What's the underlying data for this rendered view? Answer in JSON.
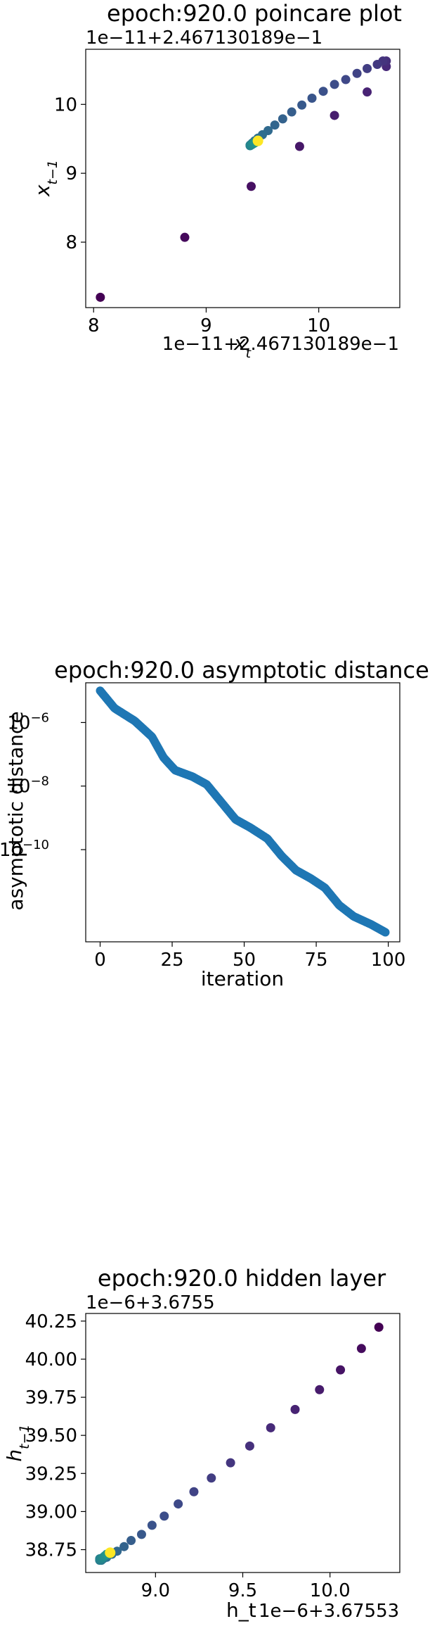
{
  "chart_data": [
    {
      "type": "scatter",
      "title": "epoch:920.0 poincare plot",
      "xlabel": "x_t",
      "ylabel": "x_{t-1}",
      "x_offset_text": "1e−11+2.467130189e−1",
      "y_offset_text": "1e−11+2.467130189e−1",
      "xlim": [
        7.93,
        10.72
      ],
      "ylim": [
        7.05,
        10.8
      ],
      "xticks": [
        8,
        9,
        10
      ],
      "xtick_labels": [
        "8",
        "9",
        "10"
      ],
      "yticks": [
        8,
        9,
        10
      ],
      "ytick_labels": [
        "8",
        "9",
        "10"
      ],
      "colormap": "viridis",
      "points": [
        {
          "x": 8.06,
          "y": 7.2
        },
        {
          "x": 8.81,
          "y": 8.07
        },
        {
          "x": 9.4,
          "y": 8.81
        },
        {
          "x": 9.83,
          "y": 9.39
        },
        {
          "x": 10.14,
          "y": 9.84
        },
        {
          "x": 10.43,
          "y": 10.18
        },
        {
          "x": 10.6,
          "y": 10.55
        },
        {
          "x": 10.6,
          "y": 10.63
        },
        {
          "x": 10.57,
          "y": 10.63
        },
        {
          "x": 10.52,
          "y": 10.58
        },
        {
          "x": 10.43,
          "y": 10.52
        },
        {
          "x": 10.34,
          "y": 10.45
        },
        {
          "x": 10.24,
          "y": 10.36
        },
        {
          "x": 10.14,
          "y": 10.29
        },
        {
          "x": 10.04,
          "y": 10.19
        },
        {
          "x": 9.94,
          "y": 10.09
        },
        {
          "x": 9.85,
          "y": 9.99
        },
        {
          "x": 9.76,
          "y": 9.89
        },
        {
          "x": 9.68,
          "y": 9.79
        },
        {
          "x": 9.61,
          "y": 9.7
        },
        {
          "x": 9.55,
          "y": 9.62
        },
        {
          "x": 9.5,
          "y": 9.56
        },
        {
          "x": 9.46,
          "y": 9.51
        },
        {
          "x": 9.43,
          "y": 9.47
        },
        {
          "x": 9.41,
          "y": 9.44
        },
        {
          "x": 9.4,
          "y": 9.42
        },
        {
          "x": 9.39,
          "y": 9.41
        },
        {
          "x": 9.39,
          "y": 9.4
        },
        {
          "x": 9.4,
          "y": 9.41
        },
        {
          "x": 9.41,
          "y": 9.42
        },
        {
          "x": 9.42,
          "y": 9.43
        },
        {
          "x": 9.43,
          "y": 9.44
        },
        {
          "x": 9.44,
          "y": 9.45
        },
        {
          "x": 9.45,
          "y": 9.46
        },
        {
          "x": 9.46,
          "y": 9.47
        }
      ]
    },
    {
      "type": "scatter",
      "title": "epoch:920.0 asymptotic distance",
      "xlabel": "iteration",
      "ylabel": "asymptotic distance",
      "yscale": "log",
      "xlim": [
        -5,
        104
      ],
      "ylim_log10": [
        -11.55,
        -4.75
      ],
      "xticks": [
        0,
        25,
        50,
        75,
        100
      ],
      "xtick_labels": [
        "0",
        "25",
        "50",
        "75",
        "100"
      ],
      "yticks_log10": [
        -6,
        -8,
        -10
      ],
      "ytick_labels": [
        "10",
        "10",
        "10"
      ],
      "ytick_exponents": [
        "−6",
        "−8",
        "−10"
      ],
      "color": "#1f77b4",
      "series_anchor_points": [
        {
          "x": 0,
          "log10_y": -5.0
        },
        {
          "x": 5,
          "log10_y": -5.55
        },
        {
          "x": 12,
          "log10_y": -5.95
        },
        {
          "x": 18,
          "log10_y": -6.45
        },
        {
          "x": 22,
          "log10_y": -7.1
        },
        {
          "x": 26,
          "log10_y": -7.5
        },
        {
          "x": 32,
          "log10_y": -7.7
        },
        {
          "x": 37,
          "log10_y": -7.95
        },
        {
          "x": 42,
          "log10_y": -8.5
        },
        {
          "x": 47,
          "log10_y": -9.05
        },
        {
          "x": 52,
          "log10_y": -9.3
        },
        {
          "x": 58,
          "log10_y": -9.65
        },
        {
          "x": 63,
          "log10_y": -10.2
        },
        {
          "x": 68,
          "log10_y": -10.65
        },
        {
          "x": 73,
          "log10_y": -10.9
        },
        {
          "x": 78,
          "log10_y": -11.2
        },
        {
          "x": 83,
          "log10_y": -11.75
        },
        {
          "x": 88,
          "log10_y": -12.1
        },
        {
          "x": 94,
          "log10_y": -12.35
        },
        {
          "x": 99,
          "log10_y": -12.6
        }
      ]
    },
    {
      "type": "scatter",
      "title": "epoch:920.0 hidden layer",
      "xlabel": "h_t",
      "ylabel": "h_{t-1}",
      "x_offset_text": "1e−6+3.67553",
      "y_offset_text": "1e−6+3.6755",
      "xlim": [
        8.6,
        10.4
      ],
      "ylim": [
        38.6,
        40.3
      ],
      "xticks": [
        9.0,
        9.5,
        10.0
      ],
      "xtick_labels": [
        "9.0",
        "9.5",
        "10.0"
      ],
      "yticks": [
        38.75,
        39.0,
        39.25,
        39.5,
        39.75,
        40.0,
        40.25
      ],
      "ytick_labels": [
        "38.75",
        "39.00",
        "39.25",
        "39.50",
        "39.75",
        "40.00",
        "40.25"
      ],
      "colormap": "viridis",
      "points": [
        {
          "x": 10.28,
          "y": 40.21
        },
        {
          "x": 10.18,
          "y": 40.07
        },
        {
          "x": 10.06,
          "y": 39.93
        },
        {
          "x": 9.94,
          "y": 39.8
        },
        {
          "x": 9.8,
          "y": 39.67
        },
        {
          "x": 9.66,
          "y": 39.55
        },
        {
          "x": 9.54,
          "y": 39.43
        },
        {
          "x": 9.43,
          "y": 39.32
        },
        {
          "x": 9.32,
          "y": 39.22
        },
        {
          "x": 9.22,
          "y": 39.13
        },
        {
          "x": 9.13,
          "y": 39.05
        },
        {
          "x": 9.05,
          "y": 38.97
        },
        {
          "x": 8.98,
          "y": 38.91
        },
        {
          "x": 8.92,
          "y": 38.85
        },
        {
          "x": 8.86,
          "y": 38.81
        },
        {
          "x": 8.82,
          "y": 38.77
        },
        {
          "x": 8.78,
          "y": 38.74
        },
        {
          "x": 8.75,
          "y": 38.72
        },
        {
          "x": 8.72,
          "y": 38.7
        },
        {
          "x": 8.7,
          "y": 38.69
        },
        {
          "x": 8.69,
          "y": 38.68
        },
        {
          "x": 8.68,
          "y": 38.68
        },
        {
          "x": 8.68,
          "y": 38.69
        },
        {
          "x": 8.69,
          "y": 38.69
        },
        {
          "x": 8.7,
          "y": 38.7
        },
        {
          "x": 8.71,
          "y": 38.71
        },
        {
          "x": 8.72,
          "y": 38.72
        },
        {
          "x": 8.73,
          "y": 38.72
        },
        {
          "x": 8.74,
          "y": 38.73
        }
      ]
    }
  ]
}
